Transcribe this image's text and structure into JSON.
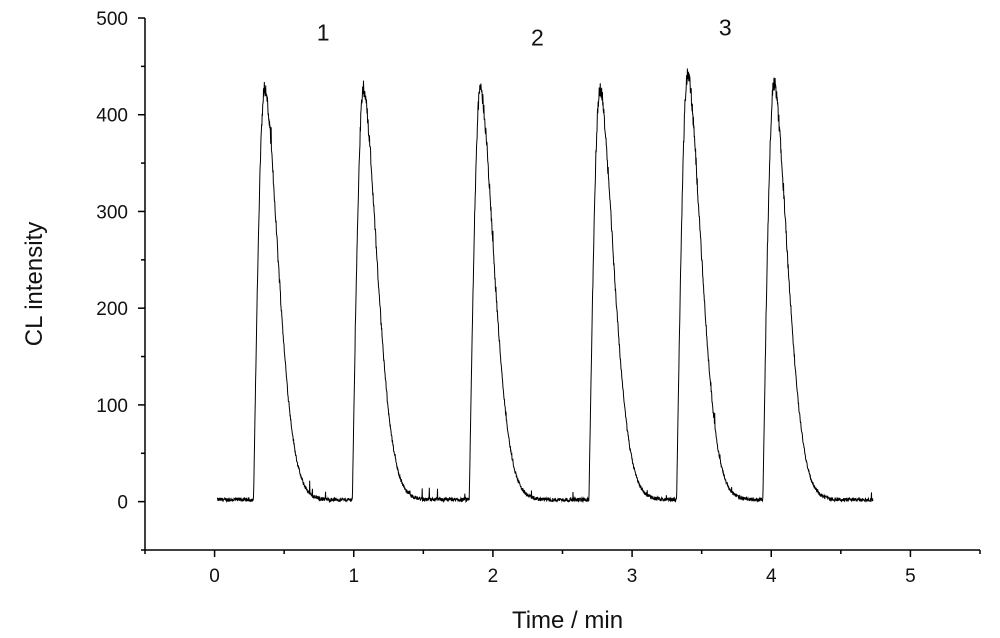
{
  "chart_data": {
    "type": "line",
    "title": "",
    "xlabel": "Time / min",
    "ylabel": "CL intensity",
    "xlim": [
      -0.5,
      5.5
    ],
    "ylim": [
      -50,
      500
    ],
    "xticks": [
      0,
      1,
      2,
      3,
      4,
      5
    ],
    "yticks": [
      0,
      100,
      200,
      300,
      400,
      500
    ],
    "grid": false,
    "legend": "none",
    "line_color": "#000000",
    "baseline": 2,
    "start_time": 0.02,
    "end_time": 4.73,
    "peaks": [
      {
        "time": 0.36,
        "height": 425
      },
      {
        "time": 1.07,
        "height": 425
      },
      {
        "time": 1.91,
        "height": 425
      },
      {
        "time": 2.77,
        "height": 425
      },
      {
        "time": 3.4,
        "height": 440
      },
      {
        "time": 4.02,
        "height": 430
      }
    ],
    "annotations": [
      {
        "text": "1",
        "x": 0.78,
        "y": 485
      },
      {
        "text": "2",
        "x": 2.32,
        "y": 480
      },
      {
        "text": "3",
        "x": 3.67,
        "y": 490
      }
    ]
  }
}
